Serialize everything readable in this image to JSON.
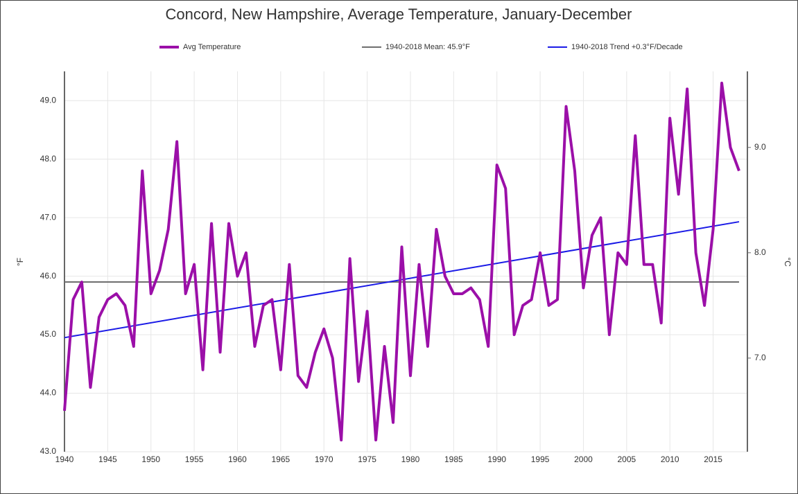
{
  "chart_data": {
    "type": "line",
    "title": "Concord, New Hampshire, Average Temperature, January-December",
    "ylabel": "°F",
    "y2label": "°C",
    "x": [
      1940,
      1941,
      1942,
      1943,
      1944,
      1945,
      1946,
      1947,
      1948,
      1949,
      1950,
      1951,
      1952,
      1953,
      1954,
      1955,
      1956,
      1957,
      1958,
      1959,
      1960,
      1961,
      1962,
      1963,
      1964,
      1965,
      1966,
      1967,
      1968,
      1969,
      1970,
      1971,
      1972,
      1973,
      1974,
      1975,
      1976,
      1977,
      1978,
      1979,
      1980,
      1981,
      1982,
      1983,
      1984,
      1985,
      1986,
      1987,
      1988,
      1989,
      1990,
      1991,
      1992,
      1993,
      1994,
      1995,
      1996,
      1997,
      1998,
      1999,
      2000,
      2001,
      2002,
      2003,
      2004,
      2005,
      2006,
      2007,
      2008,
      2009,
      2010,
      2011,
      2012,
      2013,
      2014,
      2015,
      2016,
      2017,
      2018
    ],
    "series": [
      {
        "name": "Avg Temperature",
        "color": "#9b0fa8",
        "values": [
          43.7,
          45.6,
          45.9,
          44.1,
          45.3,
          45.6,
          45.7,
          45.5,
          44.8,
          47.8,
          45.7,
          46.1,
          46.8,
          48.3,
          45.7,
          46.2,
          44.4,
          46.9,
          44.7,
          46.9,
          46.0,
          46.4,
          44.8,
          45.5,
          45.6,
          44.4,
          46.2,
          44.3,
          44.1,
          44.7,
          45.1,
          44.6,
          43.2,
          46.3,
          44.2,
          45.4,
          43.2,
          44.8,
          43.5,
          46.5,
          44.3,
          46.2,
          44.8,
          46.8,
          46.0,
          45.7,
          45.7,
          45.8,
          45.6,
          44.8,
          47.9,
          47.5,
          45.0,
          45.5,
          45.6,
          46.4,
          45.5,
          45.6,
          48.9,
          47.8,
          45.8,
          46.7,
          47.0,
          45.0,
          46.4,
          46.2,
          48.4,
          46.2,
          46.2,
          45.2,
          48.7,
          47.4,
          49.2,
          46.4,
          45.5,
          46.8,
          49.3,
          48.2,
          47.8
        ]
      }
    ],
    "mean": {
      "name": "1940-2018 Mean: 45.9°F",
      "color": "#6e6e6e",
      "value": 45.9
    },
    "trend": {
      "name": "1940-2018 Trend +0.3°F/Decade",
      "color": "#1a1ae6",
      "x": [
        1940,
        2018
      ],
      "values": [
        44.95,
        46.93
      ]
    },
    "xlim": [
      1940,
      2018
    ],
    "xticks": [
      1940,
      1945,
      1950,
      1955,
      1960,
      1965,
      1970,
      1975,
      1980,
      1985,
      1990,
      1995,
      2000,
      2005,
      2010,
      2015
    ],
    "ylim": [
      43,
      49.5
    ],
    "yticks": [
      {
        "value": 43,
        "label": "43.0"
      },
      {
        "value": 44,
        "label": "44.0"
      },
      {
        "value": 45,
        "label": "45.0"
      },
      {
        "value": 46,
        "label": "46.0"
      },
      {
        "value": 47,
        "label": "47.0"
      },
      {
        "value": 48,
        "label": "48.0"
      },
      {
        "value": 49,
        "label": "49.0"
      }
    ],
    "y2lim": [
      6.111,
      9.722
    ],
    "y2ticks": [
      {
        "value": 7,
        "label": "7.0"
      },
      {
        "value": 8,
        "label": "8.0"
      },
      {
        "value": 9,
        "label": "9.0"
      }
    ],
    "grid": true
  }
}
